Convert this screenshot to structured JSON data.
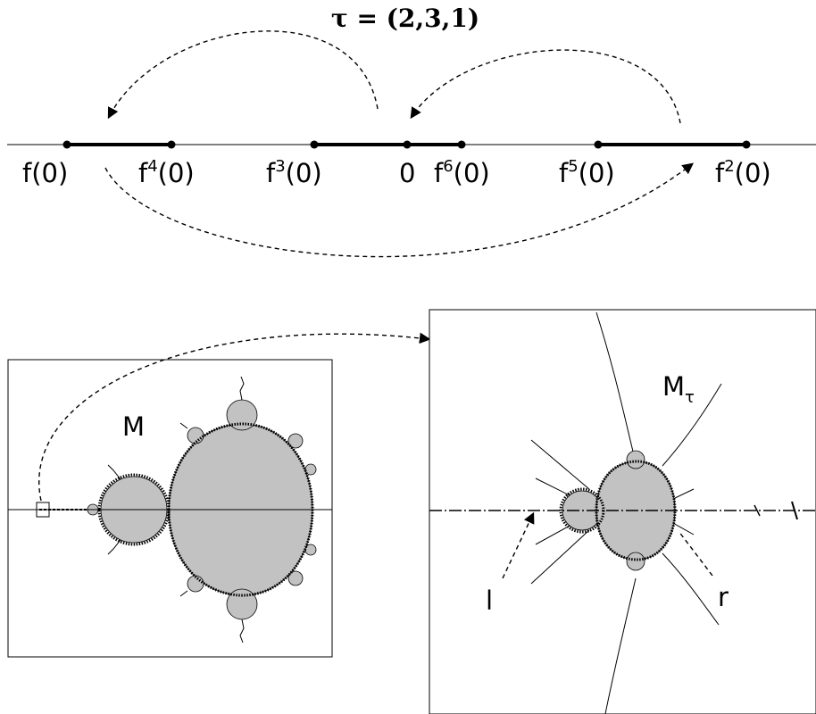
{
  "permutation_label": "τ = (2,3,1)",
  "orbit_labels": {
    "f1": {
      "base": "f",
      "sup": "",
      "arg": "(0)"
    },
    "f4": {
      "base": "f",
      "sup": "4",
      "arg": "(0)"
    },
    "f3": {
      "base": "f",
      "sup": "3",
      "arg": "(0)"
    },
    "zero": "0",
    "f6": {
      "base": "f",
      "sup": "6",
      "arg": "(0)"
    },
    "f5": {
      "base": "f",
      "sup": "5",
      "arg": "(0)"
    },
    "f2": {
      "base": "f",
      "sup": "2",
      "arg": "(0)"
    }
  },
  "mandelbrot_label": "M",
  "mtau_label": {
    "base": "M",
    "sub": "τ"
  },
  "left_point_label": "l",
  "right_point_label": "r",
  "colors": {
    "set_fill": "#c2c2c2",
    "ink": "#000000"
  }
}
